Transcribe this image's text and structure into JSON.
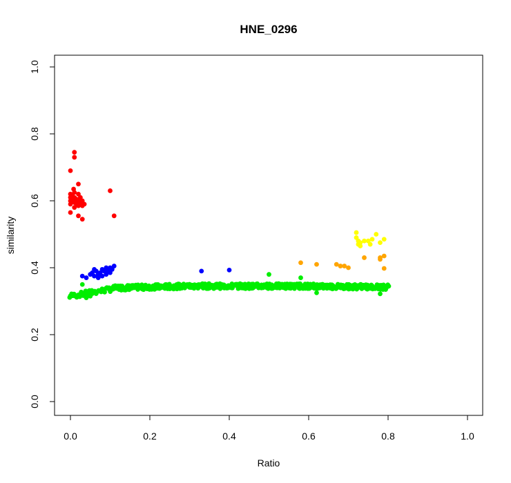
{
  "chart_data": {
    "type": "scatter",
    "title": "HNE_0296",
    "xlabel": "Ratio",
    "ylabel": "similarity",
    "xlim": [
      0.0,
      1.0
    ],
    "ylim": [
      0.0,
      1.0
    ],
    "xticks": [
      "0.0",
      "0.2",
      "0.4",
      "0.6",
      "0.8",
      "1.0"
    ],
    "yticks": [
      "0.0",
      "0.2",
      "0.4",
      "0.6",
      "0.8",
      "1.0"
    ],
    "grid": false,
    "legend": "none",
    "series": [
      {
        "color": "#ff0000",
        "points": [
          [
            0.0,
            0.69
          ],
          [
            0.01,
            0.745
          ],
          [
            0.01,
            0.73
          ],
          [
            0.02,
            0.65
          ],
          [
            0.0,
            0.62
          ],
          [
            0.0,
            0.61
          ],
          [
            0.0,
            0.6
          ],
          [
            0.0,
            0.59
          ],
          [
            0.005,
            0.615
          ],
          [
            0.005,
            0.6
          ],
          [
            0.01,
            0.625
          ],
          [
            0.01,
            0.61
          ],
          [
            0.01,
            0.595
          ],
          [
            0.01,
            0.58
          ],
          [
            0.015,
            0.605
          ],
          [
            0.015,
            0.59
          ],
          [
            0.02,
            0.62
          ],
          [
            0.02,
            0.6
          ],
          [
            0.02,
            0.585
          ],
          [
            0.025,
            0.61
          ],
          [
            0.025,
            0.595
          ],
          [
            0.03,
            0.6
          ],
          [
            0.03,
            0.585
          ],
          [
            0.035,
            0.59
          ],
          [
            0.0,
            0.565
          ],
          [
            0.02,
            0.555
          ],
          [
            0.03,
            0.545
          ],
          [
            0.1,
            0.63
          ],
          [
            0.11,
            0.555
          ],
          [
            0.008,
            0.635
          ]
        ]
      },
      {
        "color": "#0000ff",
        "points": [
          [
            0.03,
            0.375
          ],
          [
            0.04,
            0.37
          ],
          [
            0.05,
            0.38
          ],
          [
            0.055,
            0.385
          ],
          [
            0.06,
            0.375
          ],
          [
            0.065,
            0.39
          ],
          [
            0.07,
            0.38
          ],
          [
            0.075,
            0.385
          ],
          [
            0.08,
            0.395
          ],
          [
            0.08,
            0.375
          ],
          [
            0.085,
            0.39
          ],
          [
            0.09,
            0.38
          ],
          [
            0.09,
            0.4
          ],
          [
            0.095,
            0.39
          ],
          [
            0.1,
            0.385
          ],
          [
            0.1,
            0.4
          ],
          [
            0.105,
            0.395
          ],
          [
            0.11,
            0.405
          ],
          [
            0.06,
            0.395
          ],
          [
            0.07,
            0.37
          ],
          [
            0.33,
            0.39
          ],
          [
            0.4,
            0.393
          ]
        ]
      },
      {
        "color": "#ffa500",
        "points": [
          [
            0.58,
            0.415
          ],
          [
            0.62,
            0.41
          ],
          [
            0.67,
            0.41
          ],
          [
            0.68,
            0.405
          ],
          [
            0.69,
            0.405
          ],
          [
            0.7,
            0.4
          ],
          [
            0.74,
            0.43
          ],
          [
            0.78,
            0.425
          ],
          [
            0.78,
            0.43
          ],
          [
            0.79,
            0.435
          ],
          [
            0.79,
            0.398
          ]
        ]
      },
      {
        "color": "#ffff00",
        "points": [
          [
            0.72,
            0.505
          ],
          [
            0.72,
            0.49
          ],
          [
            0.725,
            0.48
          ],
          [
            0.725,
            0.47
          ],
          [
            0.73,
            0.475
          ],
          [
            0.73,
            0.465
          ],
          [
            0.74,
            0.48
          ],
          [
            0.75,
            0.48
          ],
          [
            0.755,
            0.47
          ],
          [
            0.76,
            0.485
          ],
          [
            0.77,
            0.5
          ],
          [
            0.78,
            0.475
          ],
          [
            0.79,
            0.485
          ]
        ]
      },
      {
        "color": "#00ee00",
        "band": {
          "x_from": 0.0,
          "x_to": 0.8,
          "step": 0.005,
          "y_start": 0.315,
          "y_mid": 0.34,
          "y_plateau": 0.345,
          "spread": 0.015
        },
        "points": [
          [
            0.0,
            0.315
          ],
          [
            0.01,
            0.32
          ],
          [
            0.02,
            0.318
          ],
          [
            0.03,
            0.35
          ],
          [
            0.04,
            0.31
          ],
          [
            0.05,
            0.315
          ],
          [
            0.5,
            0.38
          ],
          [
            0.58,
            0.37
          ],
          [
            0.62,
            0.325
          ],
          [
            0.78,
            0.322
          ]
        ]
      }
    ]
  }
}
